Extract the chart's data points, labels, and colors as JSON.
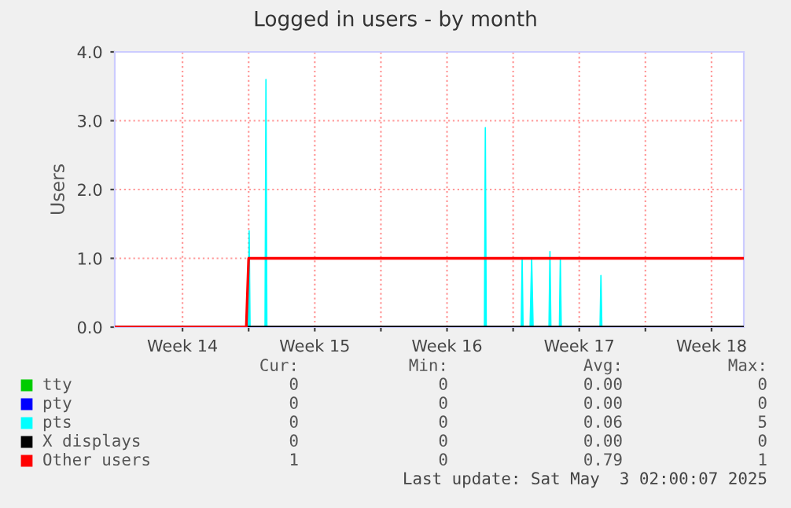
{
  "chart_data": {
    "type": "line",
    "title": "Logged in users - by month",
    "ylabel": "Users",
    "xlim": [
      "2025-03-30T22:00",
      "2025-05-03T05:00"
    ],
    "ylim": [
      0,
      4.0
    ],
    "xticks": [
      {
        "value": "2025-04-03T12:00",
        "label": "Week 14"
      },
      {
        "value": "2025-04-07",
        "label": null
      },
      {
        "value": "2025-04-10T12:00",
        "label": "Week 15"
      },
      {
        "value": "2025-04-14",
        "label": null
      },
      {
        "value": "2025-04-17T12:00",
        "label": "Week 16"
      },
      {
        "value": "2025-04-21",
        "label": null
      },
      {
        "value": "2025-04-24T12:00",
        "label": "Week 17"
      },
      {
        "value": "2025-04-28",
        "label": null
      },
      {
        "value": "2025-05-01T12:00",
        "label": "Week 18"
      }
    ],
    "yticks": [
      {
        "value": 0,
        "label": "0.0"
      },
      {
        "value": 1,
        "label": "1.0"
      },
      {
        "value": 2,
        "label": "2.0"
      },
      {
        "value": 3,
        "label": "3.0"
      },
      {
        "value": 4,
        "label": "4.0"
      }
    ],
    "grid": true,
    "legend": "bottom",
    "series": [
      {
        "name": "tty",
        "color": "#00cc00",
        "values": [
          null
        ]
      },
      {
        "name": "pty",
        "color": "#0000ff",
        "values": [
          null
        ]
      },
      {
        "name": "pts",
        "color": "#00ffff",
        "type": "area",
        "x": [
          "2025-04-06T23:30",
          "2025-04-07T00:40",
          "2025-04-07T01:50",
          "2025-04-07T20:50",
          "2025-04-07T22:00",
          "2025-04-07T23:10",
          "2025-04-19T11:30",
          "2025-04-19T12:40",
          "2025-04-19T13:50",
          "2025-04-21T10:15",
          "2025-04-21T11:25",
          "2025-04-21T12:35",
          "2025-04-21T21:30",
          "2025-04-21T23:30",
          "2025-04-22T01:20",
          "2025-04-22T21:30",
          "2025-04-22T22:45",
          "2025-04-22T23:55",
          "2025-04-23T10:45",
          "2025-04-23T11:55",
          "2025-04-23T13:05",
          "2025-04-25T14:20",
          "2025-04-25T15:30",
          "2025-04-25T16:40"
        ],
        "values": [
          0,
          1.4,
          0,
          0,
          3.6,
          0,
          0,
          2.9,
          0,
          0,
          1.0,
          0,
          0,
          1.0,
          0,
          0,
          1.1,
          0,
          0,
          1.0,
          0,
          0,
          0.75,
          0
        ]
      },
      {
        "name": "X displays",
        "color": "#000000",
        "x": [
          "2025-03-30T22:00",
          "2025-05-03T05:00"
        ],
        "values": [
          0,
          0
        ]
      },
      {
        "name": "Other users",
        "color": "#ff0000",
        "x": [
          "2025-03-30T22:00",
          "2025-04-06T21:00",
          "2025-04-07T00:00",
          "2025-05-03T05:00"
        ],
        "values": [
          0,
          0,
          1,
          1
        ]
      }
    ],
    "annotations": [
      "Cur:",
      "Min:",
      "Avg:",
      "Max:",
      "0",
      "0",
      "0.00",
      "0",
      "0",
      "0",
      "0.00",
      "0",
      "0",
      "0",
      "0.06",
      "5",
      "0",
      "0",
      "0.00",
      "0",
      "1",
      "0",
      "0.79",
      "1",
      "Last update: Sat May  3 02:00:07 2025"
    ]
  }
}
